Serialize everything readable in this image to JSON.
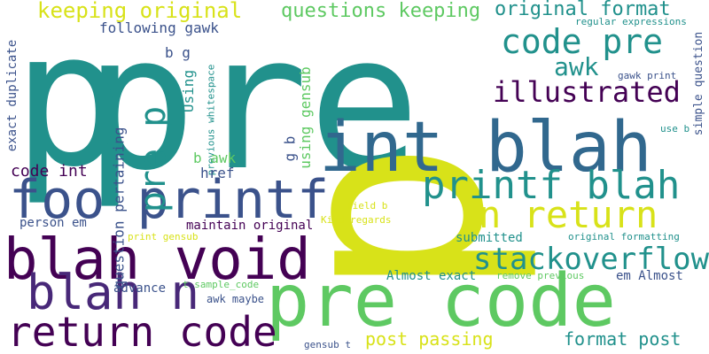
{
  "palette": {
    "teal": "#21918c",
    "green": "#5ec962",
    "lime": "#d8e219",
    "purple": "#440154",
    "indigo": "#3b528b",
    "blue": "#31688e",
    "deep_indigo": "#482878",
    "sea": "#2bae80"
  },
  "words": [
    {
      "text": "pre",
      "color": "#21918c"
    },
    {
      "text": "p",
      "color": "#21918c"
    },
    {
      "text": "p",
      "color": "#d8e219"
    },
    {
      "text": "int blah",
      "color": "#31688e"
    },
    {
      "text": "pre code",
      "color": "#5ec962"
    },
    {
      "text": "blah void",
      "color": "#440154"
    },
    {
      "text": "foo printf",
      "color": "#3b528b"
    },
    {
      "text": "return code",
      "color": "#440154"
    },
    {
      "text": "blah n",
      "color": "#482878"
    },
    {
      "text": "printf blah",
      "color": "#21918c"
    },
    {
      "text": "n return",
      "color": "#d8e219"
    },
    {
      "text": "code pre",
      "color": "#21918c"
    },
    {
      "text": "stackoverflow",
      "color": "#21918c"
    },
    {
      "text": "illustrated",
      "color": "#440154"
    },
    {
      "text": "awk",
      "color": "#21918c"
    },
    {
      "text": "pre p",
      "color": "#21918c"
    },
    {
      "text": "keeping original",
      "color": "#d8e219"
    },
    {
      "text": "questions keeping",
      "color": "#5ec962"
    },
    {
      "text": "original format",
      "color": "#21918c"
    },
    {
      "text": "post passing",
      "color": "#d8e219"
    },
    {
      "text": "format post",
      "color": "#21918c"
    },
    {
      "text": "code int",
      "color": "#440154"
    },
    {
      "text": "following gawk",
      "color": "#3b528b"
    },
    {
      "text": "exact duplicate",
      "color": "#3b528b"
    },
    {
      "text": "question pertaining",
      "color": "#3b528b"
    },
    {
      "text": "using gensub",
      "color": "#5ec962"
    },
    {
      "text": "Using",
      "color": "#21918c"
    },
    {
      "text": "previous whitespace",
      "color": "#21918c"
    },
    {
      "text": "b g",
      "color": "#3b528b"
    },
    {
      "text": "g b",
      "color": "#3b528b"
    },
    {
      "text": "b awk",
      "color": "#5ec962"
    },
    {
      "text": "href",
      "color": "#3b528b"
    },
    {
      "text": "person em",
      "color": "#3b528b"
    },
    {
      "text": "maintain original",
      "color": "#440154"
    },
    {
      "text": "advance",
      "color": "#3b528b"
    },
    {
      "text": "awk maybe",
      "color": "#3b528b"
    },
    {
      "text": "print gensub",
      "color": "#d8e219"
    },
    {
      "text": "submitted",
      "color": "#21918c"
    },
    {
      "text": "Almost exact",
      "color": "#21918c"
    },
    {
      "text": "em Almost",
      "color": "#3b528b"
    },
    {
      "text": "t sample_code",
      "color": "#5ec962"
    },
    {
      "text": "remove previous",
      "color": "#5ec962"
    },
    {
      "text": "original formatting",
      "color": "#21918c"
    },
    {
      "text": "field b",
      "color": "#d8e219"
    },
    {
      "text": "Kind regards",
      "color": "#d8e219"
    },
    {
      "text": "regular expressions",
      "color": "#21918c"
    },
    {
      "text": "gawk print",
      "color": "#3b528b"
    },
    {
      "text": "use b",
      "color": "#21918c"
    },
    {
      "text": "simple question",
      "color": "#3b528b"
    },
    {
      "text": "gensub t",
      "color": "#3b528b"
    }
  ]
}
